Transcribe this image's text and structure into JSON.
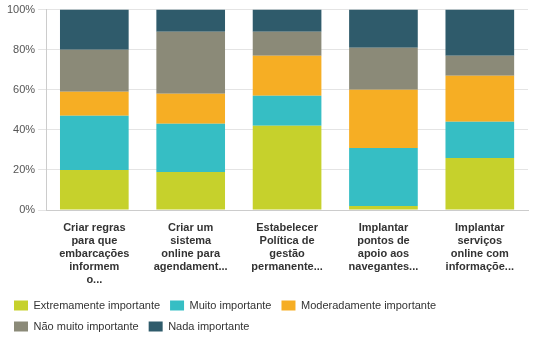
{
  "chart_data": {
    "type": "bar",
    "stacked": true,
    "grid": true,
    "legend": "bottom",
    "categories": [
      "Criar regras para que embarcações informem o...",
      "Criar um sistema online para agendament...",
      "Estabelecer Política de gestão permanente...",
      "Implantar pontos de apoio aos navegantes...",
      "Implantar serviços online com informaçõe..."
    ],
    "series": [
      {
        "name": "Extremamente importante",
        "color": "#c6d12c",
        "values": [
          20,
          19,
          42,
          2,
          26
        ]
      },
      {
        "name": "Muito importante",
        "color": "#36bec4",
        "values": [
          27,
          24,
          15,
          29,
          18
        ]
      },
      {
        "name": "Moderadamente importante",
        "color": "#f6ae24",
        "values": [
          12,
          15,
          20,
          29,
          23
        ]
      },
      {
        "name": "Não muito importante",
        "color": "#8b8a78",
        "values": [
          21,
          31,
          12,
          21,
          10
        ]
      },
      {
        "name": "Nada importante",
        "color": "#2f5b6b",
        "values": [
          20,
          11,
          11,
          19,
          23
        ]
      }
    ],
    "ylim": [
      0,
      100
    ],
    "yticks": [
      {
        "value": 0,
        "label": "0%"
      },
      {
        "value": 20,
        "label": "20%"
      },
      {
        "value": 40,
        "label": "40%"
      },
      {
        "value": 60,
        "label": "60%"
      },
      {
        "value": 80,
        "label": "80%"
      },
      {
        "value": 100,
        "label": "100%"
      }
    ]
  }
}
